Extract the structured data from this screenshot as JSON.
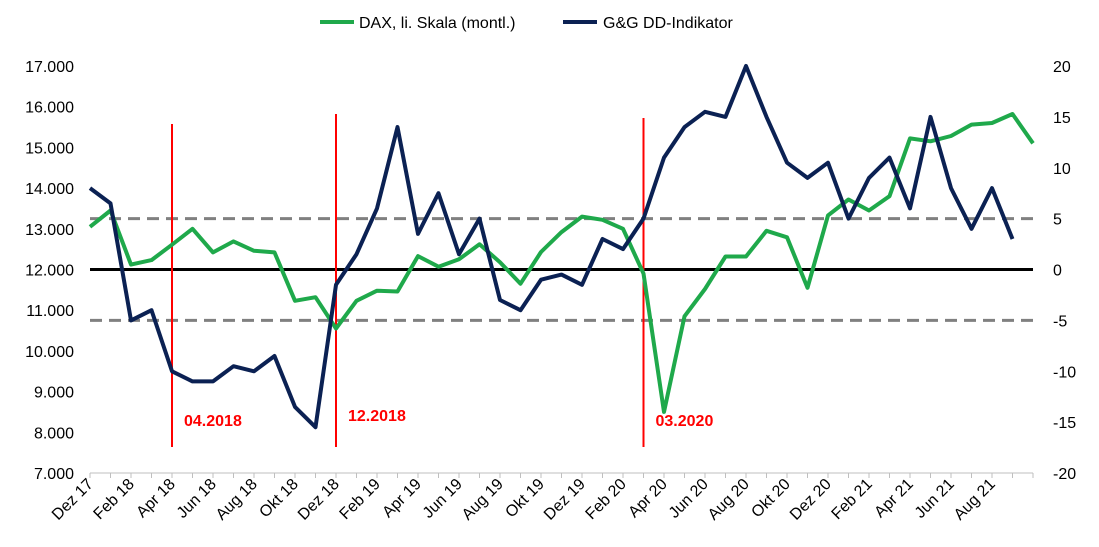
{
  "chart_data": {
    "type": "line",
    "colors": {
      "dax": "#1fa94b",
      "dd": "#0b2153",
      "marker": "#ff0000",
      "threshold": "#808080",
      "zero": "#000000"
    },
    "legend": {
      "placement": "top-center"
    },
    "y_left": {
      "range": [
        7000,
        17000
      ],
      "ticks": [
        "7.000",
        "8.000",
        "9.000",
        "10.000",
        "11.000",
        "12.000",
        "13.000",
        "14.000",
        "15.000",
        "16.000",
        "17.000"
      ]
    },
    "y_right": {
      "range": [
        -20,
        20
      ],
      "ticks": [
        "-20",
        "-15",
        "-10",
        "-5",
        "0",
        "5",
        "10",
        "15",
        "20"
      ]
    },
    "x_ticks": [
      "Dez 17",
      "Feb 18",
      "Apr 18",
      "Jun 18",
      "Aug 18",
      "Okt 18",
      "Dez 18",
      "Feb 19",
      "Apr 19",
      "Jun 19",
      "Aug 19",
      "Okt 19",
      "Dez 19",
      "Feb 20",
      "Apr 20",
      "Jun 20",
      "Aug 20",
      "Okt 20",
      "Dez 20",
      "Feb 21",
      "Apr 21",
      "Jun 21",
      "Aug 21"
    ],
    "thresholds": [
      5,
      -5
    ],
    "zero_line": 0,
    "series": [
      {
        "name": "DAX, li. Skala (montl.)",
        "axis": "left",
        "values": [
          13050,
          13450,
          12120,
          12230,
          12610,
          13000,
          12420,
          12690,
          12460,
          12420,
          11230,
          11320,
          10550,
          11230,
          11480,
          11460,
          12330,
          12070,
          12250,
          12620,
          12180,
          11650,
          12430,
          12920,
          13300,
          13220,
          13000,
          11900,
          8500,
          10850,
          11520,
          12320,
          12320,
          12950,
          12790,
          11550,
          13330,
          13720,
          13450,
          13800,
          15220,
          15150,
          15280,
          15560,
          15600,
          15820,
          15100
        ]
      },
      {
        "name": "G&G DD-Indikator",
        "axis": "right",
        "values": [
          8,
          6.5,
          -5,
          -4,
          -10,
          -11,
          -11,
          -9.5,
          -10,
          -8.5,
          -13.5,
          -15.5,
          -1.5,
          1.5,
          6,
          14,
          3.5,
          7.5,
          1.5,
          5,
          -3,
          -4,
          -1,
          -0.5,
          -1.5,
          3,
          2,
          5,
          11,
          14,
          15.5,
          15,
          20,
          15,
          10.5,
          9,
          10.5,
          5,
          9,
          11,
          6,
          15,
          8,
          4,
          8,
          3
        ]
      }
    ],
    "markers": [
      {
        "label": "04.2018",
        "index": 4
      },
      {
        "label": "12.2018",
        "index": 12
      },
      {
        "label": "03.2020",
        "index": 27
      }
    ]
  }
}
